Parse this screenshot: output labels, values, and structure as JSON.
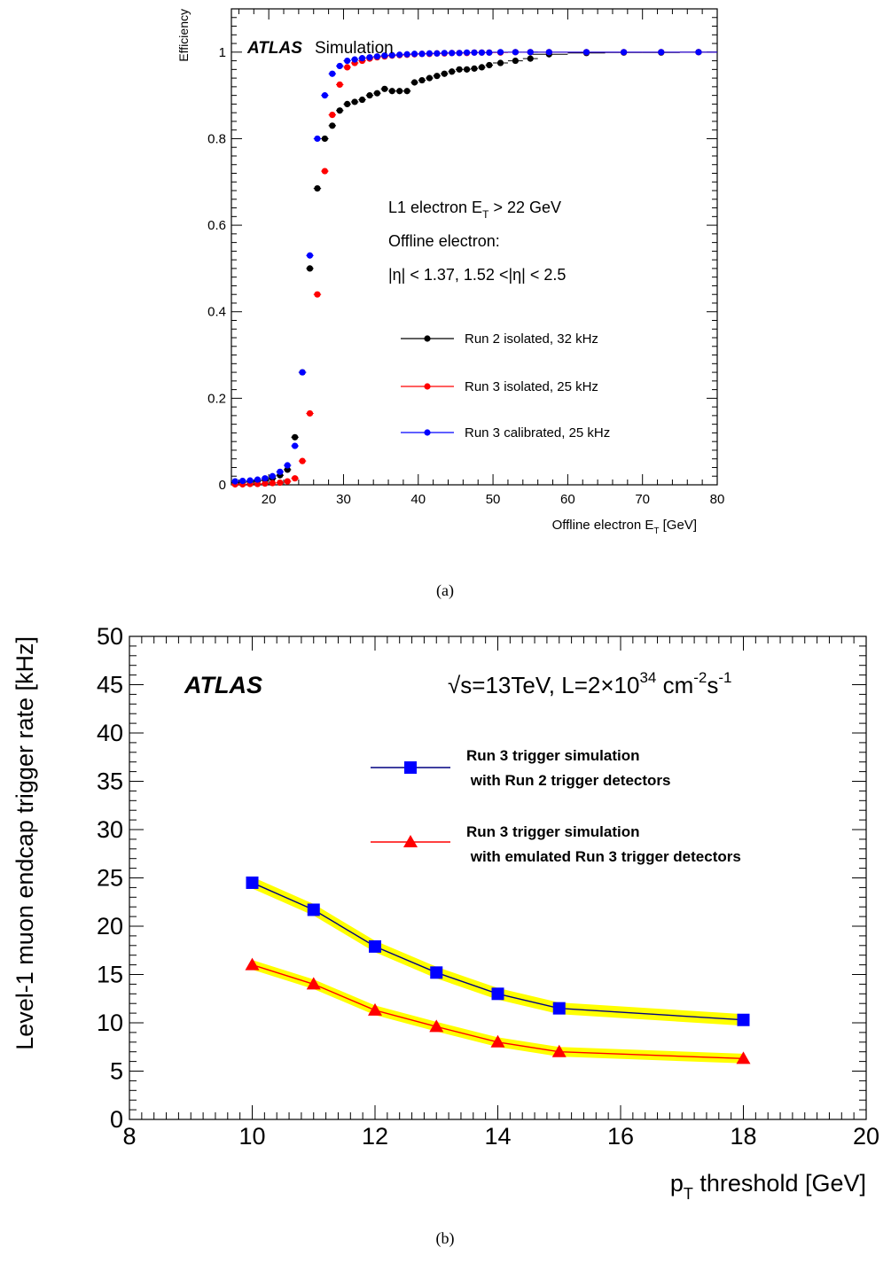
{
  "captions": {
    "a": "(a)",
    "b": "(b)"
  },
  "chart_data": [
    {
      "type": "scatter",
      "ylabel": "Efficiency",
      "xlabel_main": "Offline electron E",
      "xlabel_sub": "T",
      "xlabel_unit": "[GeV]",
      "xlim": [
        15,
        80
      ],
      "ylim": [
        0,
        1.1
      ],
      "xticks": [
        20,
        30,
        40,
        50,
        60,
        70,
        80
      ],
      "yticks": [
        0,
        0.2,
        0.4,
        0.6,
        0.8,
        1
      ],
      "ytick_labels": [
        "0",
        "0.2",
        "0.4",
        "0.6",
        "0.8",
        "1"
      ],
      "brand": "ATLAS",
      "brand_suffix": "Simulation",
      "annotations": {
        "line1_main": "L1 electron E",
        "line1_sub": "T",
        "line1_rest": "> 22 GeV",
        "line2": "Offline electron:",
        "line3": "|η| < 1.37, 1.52 <|η| < 2.5"
      },
      "series": [
        {
          "name": "Run 2 isolated, 32 kHz",
          "color": "#000000",
          "x": [
            15.5,
            16.5,
            17.5,
            18.5,
            19.5,
            20.5,
            21.5,
            22.5,
            23.5,
            24.5,
            25.5,
            26.5,
            27.5,
            28.5,
            29.5,
            30.5,
            31.5,
            32.5,
            33.5,
            34.5,
            35.5,
            36.5,
            37.5,
            38.5,
            39.5,
            40.5,
            41.5,
            42.5,
            43.5,
            44.5,
            45.5,
            46.5,
            47.5,
            48.5,
            49.5,
            51,
            53,
            55,
            57.5,
            62.5,
            67.5,
            72.5,
            77.5
          ],
          "y": [
            0.005,
            0.006,
            0.007,
            0.009,
            0.011,
            0.015,
            0.022,
            0.035,
            0.11,
            0.26,
            0.5,
            0.685,
            0.8,
            0.83,
            0.865,
            0.88,
            0.885,
            0.89,
            0.9,
            0.905,
            0.915,
            0.91,
            0.91,
            0.91,
            0.93,
            0.935,
            0.94,
            0.945,
            0.95,
            0.955,
            0.96,
            0.96,
            0.962,
            0.965,
            0.97,
            0.975,
            0.98,
            0.985,
            0.995,
            0.998,
            0.999,
            0.999,
            1.0
          ]
        },
        {
          "name": "Run 3 isolated, 25 kHz",
          "color": "#ff0000",
          "x": [
            15.5,
            16.5,
            17.5,
            18.5,
            19.5,
            20.5,
            21.5,
            22.5,
            23.5,
            24.5,
            25.5,
            26.5,
            27.5,
            28.5,
            29.5,
            30.5,
            31.5,
            32.5,
            33.5,
            34.5,
            35.5,
            36.5,
            37.5,
            38.5,
            39.5,
            40.5,
            41.5,
            42.5,
            43.5,
            44.5,
            45.5,
            46.5,
            47.5,
            48.5,
            49.5,
            51,
            53,
            55,
            57.5,
            62.5,
            67.5,
            72.5,
            77.5
          ],
          "y": [
            0.001,
            0.001,
            0.002,
            0.002,
            0.003,
            0.004,
            0.005,
            0.008,
            0.015,
            0.055,
            0.165,
            0.44,
            0.725,
            0.855,
            0.925,
            0.965,
            0.975,
            0.98,
            0.985,
            0.988,
            0.99,
            0.992,
            0.993,
            0.994,
            0.995,
            0.996,
            0.996,
            0.997,
            0.997,
            0.998,
            0.998,
            0.998,
            0.999,
            0.999,
            0.999,
            0.999,
            1.0,
            1.0,
            1.0,
            1.0,
            1.0,
            1.0,
            1.0
          ]
        },
        {
          "name": "Run 3 calibrated, 25 kHz",
          "color": "#0000ff",
          "x": [
            15.5,
            16.5,
            17.5,
            18.5,
            19.5,
            20.5,
            21.5,
            22.5,
            23.5,
            24.5,
            25.5,
            26.5,
            27.5,
            28.5,
            29.5,
            30.5,
            31.5,
            32.5,
            33.5,
            34.5,
            35.5,
            36.5,
            37.5,
            38.5,
            39.5,
            40.5,
            41.5,
            42.5,
            43.5,
            44.5,
            45.5,
            46.5,
            47.5,
            48.5,
            49.5,
            51,
            53,
            55,
            57.5,
            62.5,
            67.5,
            72.5,
            77.5
          ],
          "y": [
            0.008,
            0.009,
            0.01,
            0.012,
            0.015,
            0.02,
            0.03,
            0.045,
            0.09,
            0.26,
            0.53,
            0.8,
            0.9,
            0.95,
            0.968,
            0.98,
            0.983,
            0.986,
            0.988,
            0.99,
            0.992,
            0.993,
            0.994,
            0.995,
            0.996,
            0.996,
            0.997,
            0.997,
            0.998,
            0.998,
            0.998,
            0.999,
            0.999,
            0.999,
            0.999,
            1.0,
            1.0,
            1.0,
            1.0,
            1.0,
            1.0,
            1.0,
            1.0
          ]
        }
      ]
    },
    {
      "type": "line",
      "ylabel": "Level-1 muon endcap trigger rate [kHz]",
      "xlabel_main": "p",
      "xlabel_sub": "T",
      "xlabel_rest": " threshold [GeV]",
      "xlim": [
        8,
        20
      ],
      "ylim": [
        0,
        50
      ],
      "xticks": [
        8,
        10,
        12,
        14,
        16,
        18,
        20
      ],
      "yticks": [
        0,
        5,
        10,
        15,
        20,
        25,
        30,
        35,
        40,
        45,
        50
      ],
      "brand": "ATLAS",
      "energy_text": "√s=13TeV, L=2×10",
      "energy_sup1": "34",
      "energy_unit": " cm",
      "energy_sup2": "-2",
      "energy_s": "s",
      "energy_sup3": "-1",
      "band_color": "#ffff00",
      "series": [
        {
          "name_line1": "Run 3 trigger simulation",
          "name_line2": " with Run 2 trigger detectors",
          "marker": "square",
          "color": "#0000ff",
          "line_color": "#000080",
          "x": [
            10,
            11,
            12,
            13,
            14,
            15,
            18
          ],
          "y": [
            24.5,
            21.7,
            17.9,
            15.2,
            13.0,
            11.5,
            10.3
          ],
          "band": 0.6
        },
        {
          "name_line1": "Run 3 trigger simulation",
          "name_line2": " with emulated Run 3 trigger detectors",
          "marker": "triangle",
          "color": "#ff0000",
          "line_color": "#ff0000",
          "x": [
            10,
            11,
            12,
            13,
            14,
            15,
            18
          ],
          "y": [
            16.0,
            14.0,
            11.3,
            9.6,
            8.0,
            7.0,
            6.3
          ],
          "band": 0.5
        }
      ]
    }
  ]
}
